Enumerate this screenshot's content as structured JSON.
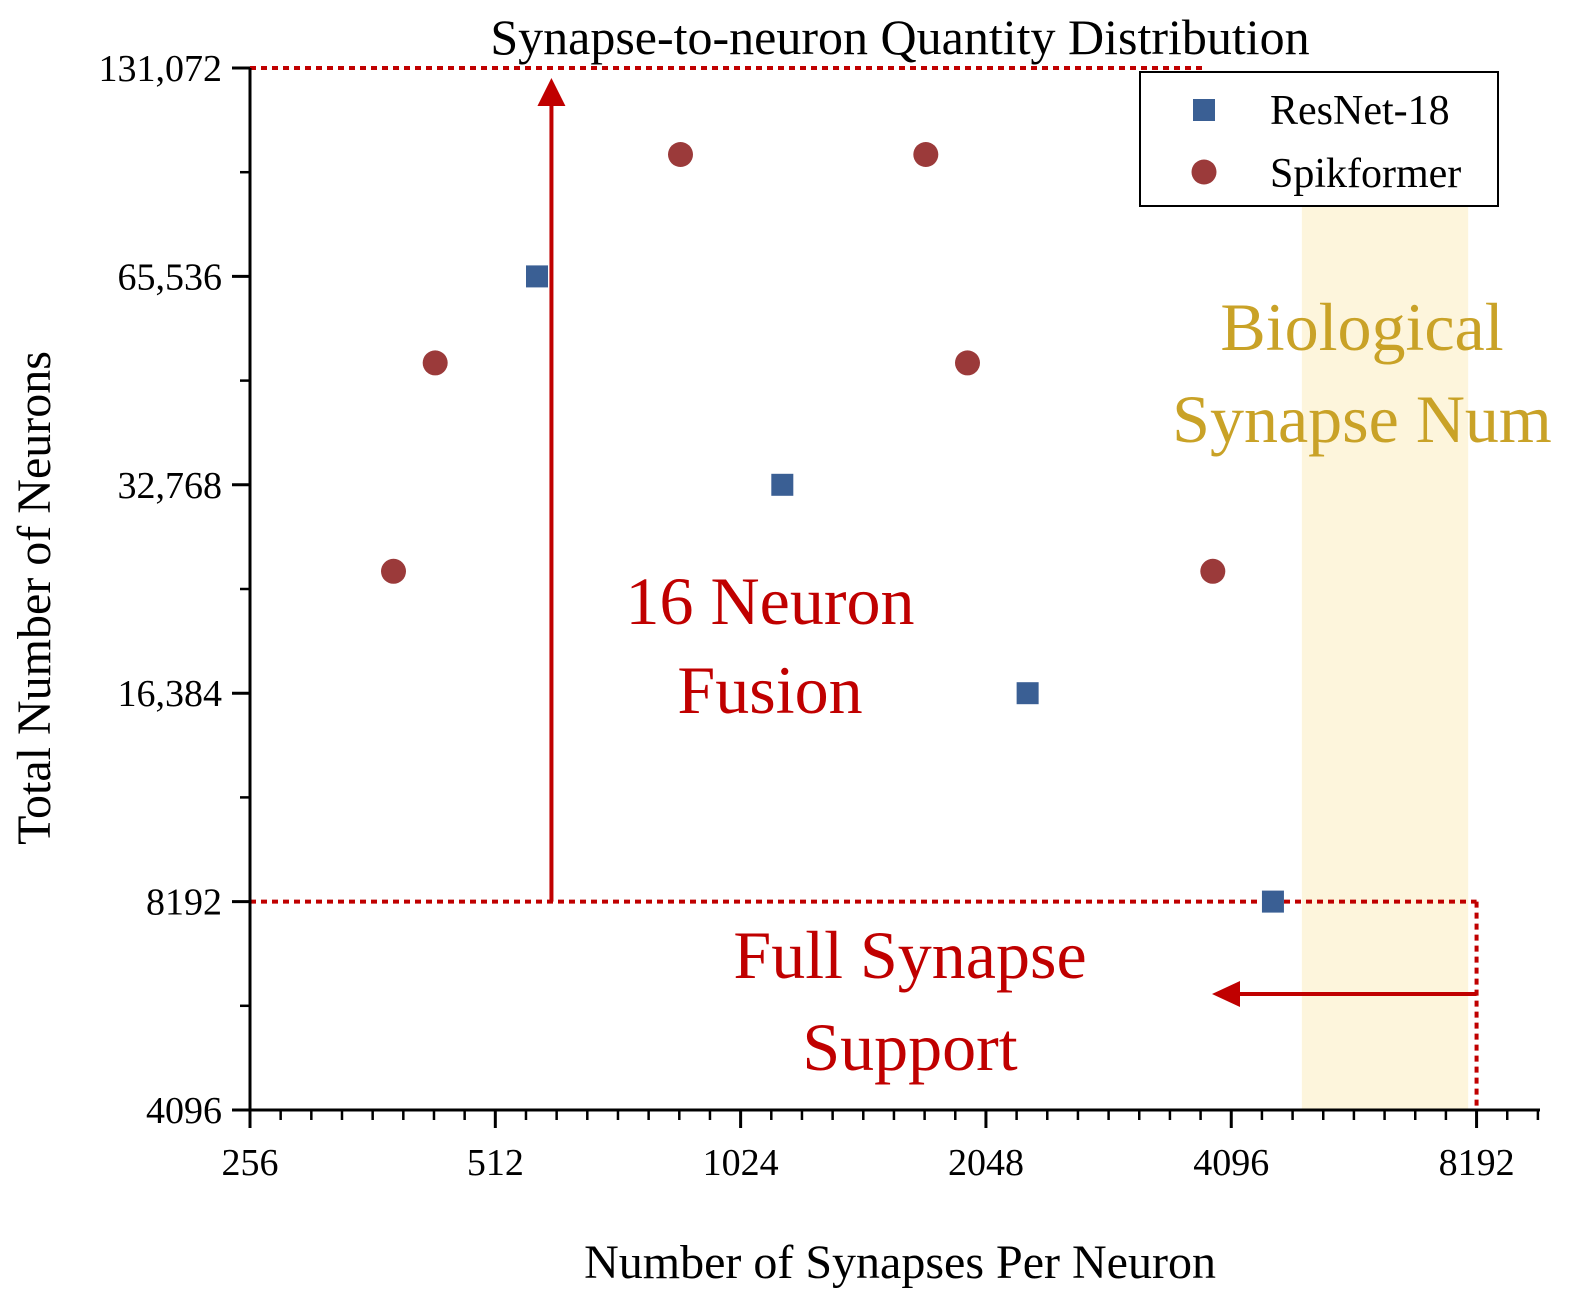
{
  "chart_data": {
    "type": "scatter",
    "title": "Synapse-to-neuron Quantity Distribution",
    "xlabel": "Number of Synapses Per Neuron",
    "ylabel": "Total Number of Neurons",
    "xscale": "log2",
    "yscale": "log2",
    "xlim": [
      256,
      9800
    ],
    "ylim": [
      4096,
      131072
    ],
    "xticks": [
      256,
      512,
      1024,
      2048,
      4096,
      8192
    ],
    "xtick_labels": [
      "256",
      "512",
      "1024",
      "2048",
      "4096",
      "8192"
    ],
    "yticks": [
      4096,
      8192,
      16384,
      32768,
      65536,
      131072
    ],
    "ytick_labels": [
      "4096",
      "8192",
      "16,384",
      "32,768",
      "65,536",
      "131,072"
    ],
    "legend_position": "top-right",
    "series": [
      {
        "name": "ResNet-18",
        "marker": "square",
        "color": "#3a5f94",
        "points": [
          [
            576,
            65536
          ],
          [
            1152,
            32768
          ],
          [
            2304,
            16384
          ],
          [
            4608,
            8192
          ]
        ]
      },
      {
        "name": "Spikformer",
        "marker": "circle",
        "color": "#9b3a3a",
        "points": [
          [
            384,
            24576
          ],
          [
            432,
            49152
          ],
          [
            864,
            98304
          ],
          [
            1728,
            98304
          ],
          [
            1944,
            49152
          ],
          [
            3888,
            24576
          ]
        ]
      }
    ],
    "regions": [
      {
        "label_lines": [
          "Biological",
          "Synapse Num"
        ],
        "x_range": [
          5000,
          8000
        ],
        "color": "#fdf5dc",
        "text_color": "#c9a227"
      }
    ],
    "annotations": [
      {
        "label_lines": [
          "16 Neuron",
          "Fusion"
        ],
        "arrow": "up",
        "arrow_x": 600,
        "arrow_y_range": [
          8192,
          131072
        ],
        "color": "#c00000"
      },
      {
        "label_lines": [
          "Full Synapse",
          "Support"
        ],
        "arrow": "left",
        "arrow_y": 6000,
        "arrow_x_range": [
          8192,
          4000
        ],
        "color": "#c00000"
      }
    ],
    "reference_lines": [
      {
        "style": "dotted",
        "color": "#c00000",
        "from": [
          256,
          131072
        ],
        "to": [
          3800,
          131072
        ]
      },
      {
        "style": "dotted",
        "color": "#c00000",
        "from": [
          256,
          8192
        ],
        "to": [
          8192,
          8192
        ]
      },
      {
        "style": "dotted",
        "color": "#c00000",
        "from": [
          8192,
          8192
        ],
        "to": [
          8192,
          4096
        ]
      }
    ]
  }
}
